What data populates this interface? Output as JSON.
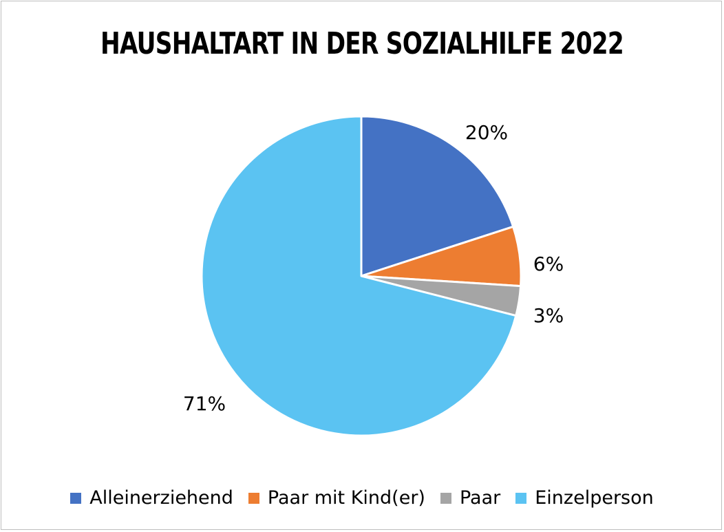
{
  "chart_data": {
    "type": "pie",
    "title": "HAUSHALTART IN DER SOZIALHILFE 2022",
    "categories": [
      "Alleinerziehend",
      "Paar mit Kind(er)",
      "Paar",
      "Einzelperson"
    ],
    "values": [
      20,
      6,
      3,
      71
    ],
    "data_labels": [
      "20%",
      "6%",
      "3%",
      "71%"
    ],
    "colors": [
      "#4472c4",
      "#ed7d31",
      "#a5a5a5",
      "#5bc3f2"
    ],
    "legend_position": "bottom"
  }
}
